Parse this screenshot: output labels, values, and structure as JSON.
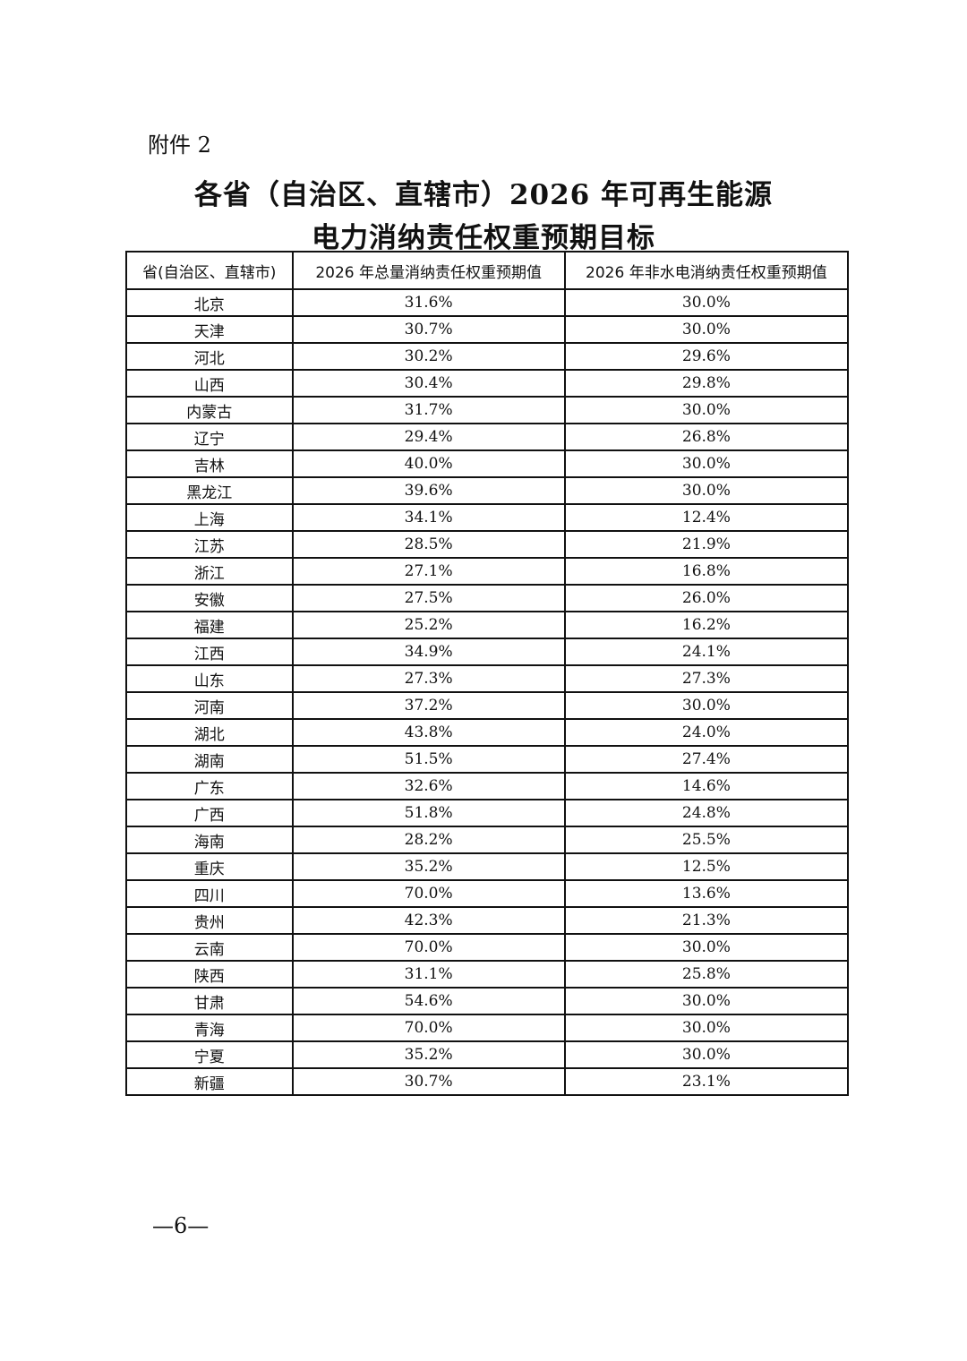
{
  "attachment_label": "附件 2",
  "title_line1": "各省（自治区、直辖市）2026 年可再生能源",
  "title_line2": "电力消纳责任权重预期目标",
  "table": {
    "headers": [
      "省(自治区、直辖市)",
      "2026 年总量消纳责任权重预期值",
      "2026 年非水电消纳责任权重预期值"
    ],
    "rows": [
      [
        "北京",
        "31.6%",
        "30.0%"
      ],
      [
        "天津",
        "30.7%",
        "30.0%"
      ],
      [
        "河北",
        "30.2%",
        "29.6%"
      ],
      [
        "山西",
        "30.4%",
        "29.8%"
      ],
      [
        "内蒙古",
        "31.7%",
        "30.0%"
      ],
      [
        "辽宁",
        "29.4%",
        "26.8%"
      ],
      [
        "吉林",
        "40.0%",
        "30.0%"
      ],
      [
        "黑龙江",
        "39.6%",
        "30.0%"
      ],
      [
        "上海",
        "34.1%",
        "12.4%"
      ],
      [
        "江苏",
        "28.5%",
        "21.9%"
      ],
      [
        "浙江",
        "27.1%",
        "16.8%"
      ],
      [
        "安徽",
        "27.5%",
        "26.0%"
      ],
      [
        "福建",
        "25.2%",
        "16.2%"
      ],
      [
        "江西",
        "34.9%",
        "24.1%"
      ],
      [
        "山东",
        "27.3%",
        "27.3%"
      ],
      [
        "河南",
        "37.2%",
        "30.0%"
      ],
      [
        "湖北",
        "43.8%",
        "24.0%"
      ],
      [
        "湖南",
        "51.5%",
        "27.4%"
      ],
      [
        "广东",
        "32.6%",
        "14.6%"
      ],
      [
        "广西",
        "51.8%",
        "24.8%"
      ],
      [
        "海南",
        "28.2%",
        "25.5%"
      ],
      [
        "重庆",
        "35.2%",
        "12.5%"
      ],
      [
        "四川",
        "70.0%",
        "13.6%"
      ],
      [
        "贵州",
        "42.3%",
        "21.3%"
      ],
      [
        "云南",
        "70.0%",
        "30.0%"
      ],
      [
        "陕西",
        "31.1%",
        "25.8%"
      ],
      [
        "甘肃",
        "54.6%",
        "30.0%"
      ],
      [
        "青海",
        "70.0%",
        "30.0%"
      ],
      [
        "宁夏",
        "35.2%",
        "30.0%"
      ],
      [
        "新疆",
        "30.7%",
        "23.1%"
      ]
    ]
  },
  "page_number": "—6—"
}
